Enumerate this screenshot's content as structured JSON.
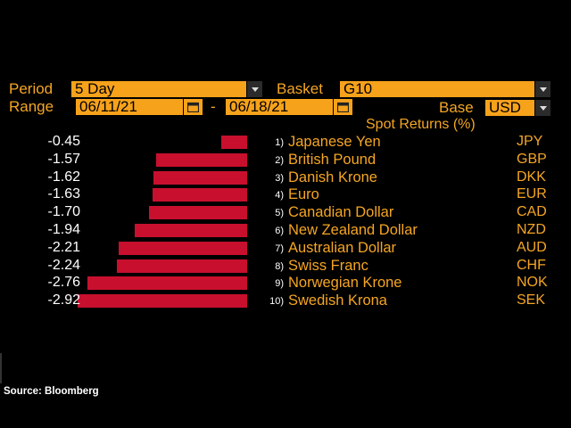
{
  "controls": {
    "period_label": "Period",
    "period_value": "5 Day",
    "basket_label": "Basket",
    "basket_value": "G10",
    "range_label": "Range",
    "range_start": "06/11/21",
    "range_sep": "-",
    "range_end": "06/18/21",
    "base_label": "Base",
    "base_value": "USD"
  },
  "chart_title": "Spot Returns (%)",
  "chart_data": {
    "type": "bar",
    "title": "Spot Returns (%)",
    "orientation": "horizontal",
    "categories": [
      "Japanese Yen",
      "British Pound",
      "Danish Krone",
      "Euro",
      "Canadian Dollar",
      "New Zealand Dollar",
      "Australian Dollar",
      "Swiss Franc",
      "Norwegian Krone",
      "Swedish Krona"
    ],
    "values": [
      -0.45,
      -1.57,
      -1.62,
      -1.63,
      -1.7,
      -1.94,
      -2.21,
      -2.24,
      -2.76,
      -2.92
    ],
    "bar_color": "#c8102e"
  },
  "rows": [
    {
      "value": "-0.45",
      "rank": "1)",
      "name": "Japanese Yen",
      "code": "JPY"
    },
    {
      "value": "-1.57",
      "rank": "2)",
      "name": "British Pound",
      "code": "GBP"
    },
    {
      "value": "-1.62",
      "rank": "3)",
      "name": "Danish Krone",
      "code": "DKK"
    },
    {
      "value": "-1.63",
      "rank": "4)",
      "name": "Euro",
      "code": "EUR"
    },
    {
      "value": "-1.70",
      "rank": "5)",
      "name": "Canadian Dollar",
      "code": "CAD"
    },
    {
      "value": "-1.94",
      "rank": "6)",
      "name": "New Zealand Dollar",
      "code": "NZD"
    },
    {
      "value": "-2.21",
      "rank": "7)",
      "name": "Australian Dollar",
      "code": "AUD"
    },
    {
      "value": "-2.24",
      "rank": "8)",
      "name": "Swiss Franc",
      "code": "CHF"
    },
    {
      "value": "-2.76",
      "rank": "9)",
      "name": "Norwegian Krone",
      "code": "NOK"
    },
    {
      "value": "-2.92",
      "rank": "10)",
      "name": "Swedish Krona",
      "code": "SEK"
    }
  ],
  "source": "Source: Bloomberg",
  "colors": {
    "accent": "#f5a623",
    "field": "#f7a21b",
    "bar": "#c8102e",
    "background": "#000000"
  }
}
